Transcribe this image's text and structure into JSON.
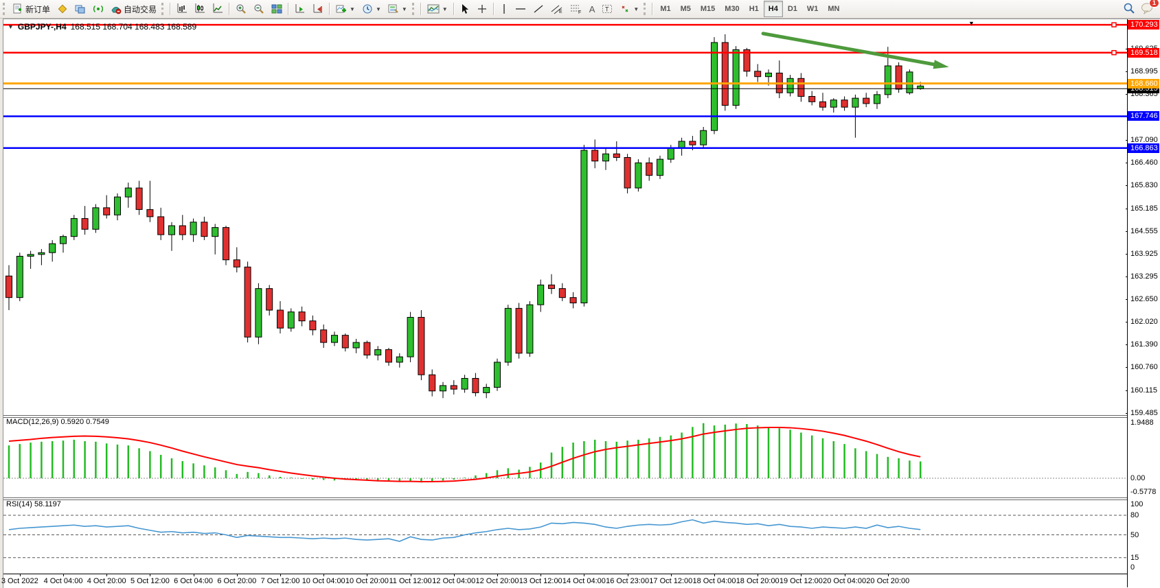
{
  "toolbar": {
    "new_order_label": "新订单",
    "autotrading_label": "自动交易",
    "timeframes": [
      "M1",
      "M5",
      "M15",
      "M30",
      "H1",
      "H4",
      "D1",
      "W1",
      "MN"
    ],
    "active_timeframe": "H4",
    "notification_count": "1"
  },
  "chart": {
    "symbol_title": "GBPJPY-,H4",
    "ohlc_text": "168.515 168.704 168.483 168.589"
  },
  "price_axis": {
    "ticks": [
      "169.625",
      "168.995",
      "168.365",
      "167.090",
      "166.460",
      "165.830",
      "165.185",
      "164.555",
      "163.925",
      "163.295",
      "162.650",
      "162.020",
      "161.390",
      "160.760",
      "160.115",
      "159.485"
    ],
    "tick_values": [
      169.625,
      168.995,
      168.365,
      167.09,
      166.46,
      165.83,
      165.185,
      164.555,
      163.925,
      163.295,
      162.65,
      162.02,
      161.39,
      160.76,
      160.115,
      159.485
    ]
  },
  "hlines": [
    {
      "price": 170.293,
      "label": "170.293",
      "color": "#ff0000",
      "width": 2.5,
      "handles": true
    },
    {
      "price": 169.518,
      "label": "169.518",
      "color": "#ff0000",
      "width": 2.5,
      "handles": true
    },
    {
      "price": 168.66,
      "label": "168.660",
      "color": "#ffa500",
      "width": 3,
      "handles": false
    },
    {
      "price": 168.515,
      "label": "168.515",
      "color": "#000000",
      "width": 1,
      "handles": false
    },
    {
      "price": 167.746,
      "label": "167.746",
      "color": "#0000ff",
      "width": 2.5,
      "handles": false
    },
    {
      "price": 166.863,
      "label": "166.863",
      "color": "#0000ff",
      "width": 2.5,
      "handles": false
    }
  ],
  "macd_panel": {
    "label": "MACD(12,26,9) 0.5920 0.7549",
    "ticks": [
      {
        "text": "1.9488",
        "value": 1.9488
      },
      {
        "text": "0.00",
        "value": 0.0
      },
      {
        "text": "-0.5778",
        "value": -0.5778
      }
    ]
  },
  "rsi_panel": {
    "label": "RSI(14) 58.1197",
    "ticks": [
      {
        "text": "100",
        "value": 100
      },
      {
        "text": "80",
        "value": 80
      },
      {
        "text": "50",
        "value": 50
      },
      {
        "text": "15",
        "value": 15
      },
      {
        "text": "0",
        "value": 0
      }
    ],
    "dashed_levels": [
      80,
      50,
      15
    ]
  },
  "chart_data": {
    "type": "candlestick",
    "title": "GBPJPY- H4",
    "bull_color": "#2fbe2f",
    "bear_color": "#e03030",
    "wick_color": "#000000",
    "candles": [
      [
        163.3,
        163.6,
        162.35,
        162.7
      ],
      [
        162.7,
        163.95,
        162.6,
        163.85
      ],
      [
        163.85,
        164.0,
        163.5,
        163.9
      ],
      [
        163.9,
        164.05,
        163.6,
        163.95
      ],
      [
        163.95,
        164.3,
        163.7,
        164.2
      ],
      [
        164.2,
        164.45,
        163.95,
        164.4
      ],
      [
        164.4,
        165.0,
        164.3,
        164.9
      ],
      [
        164.9,
        165.25,
        164.45,
        164.6
      ],
      [
        164.6,
        165.3,
        164.5,
        165.2
      ],
      [
        165.2,
        165.55,
        164.9,
        165.0
      ],
      [
        165.0,
        165.6,
        164.85,
        165.5
      ],
      [
        165.5,
        165.9,
        165.2,
        165.75
      ],
      [
        165.75,
        165.95,
        165.0,
        165.15
      ],
      [
        165.15,
        165.95,
        164.8,
        164.95
      ],
      [
        164.95,
        165.2,
        164.3,
        164.45
      ],
      [
        164.45,
        164.8,
        164.0,
        164.7
      ],
      [
        164.7,
        165.0,
        164.3,
        164.45
      ],
      [
        164.45,
        164.9,
        164.25,
        164.8
      ],
      [
        164.8,
        164.95,
        164.3,
        164.4
      ],
      [
        164.4,
        164.75,
        163.9,
        164.65
      ],
      [
        164.65,
        164.7,
        163.6,
        163.75
      ],
      [
        163.75,
        164.1,
        163.4,
        163.55
      ],
      [
        163.55,
        163.7,
        161.45,
        161.6
      ],
      [
        161.6,
        163.1,
        161.4,
        162.95
      ],
      [
        162.95,
        163.05,
        162.2,
        162.35
      ],
      [
        162.35,
        162.6,
        161.7,
        161.85
      ],
      [
        161.85,
        162.4,
        161.75,
        162.3
      ],
      [
        162.3,
        162.45,
        161.9,
        162.05
      ],
      [
        162.05,
        162.2,
        161.65,
        161.8
      ],
      [
        161.8,
        161.95,
        161.3,
        161.45
      ],
      [
        161.45,
        161.75,
        161.35,
        161.65
      ],
      [
        161.65,
        161.7,
        161.2,
        161.3
      ],
      [
        161.3,
        161.55,
        161.15,
        161.45
      ],
      [
        161.45,
        161.5,
        161.0,
        161.1
      ],
      [
        161.1,
        161.35,
        160.95,
        161.25
      ],
      [
        161.25,
        161.3,
        160.8,
        160.9
      ],
      [
        160.9,
        161.15,
        160.75,
        161.05
      ],
      [
        161.05,
        162.3,
        160.9,
        162.15
      ],
      [
        162.15,
        162.35,
        160.4,
        160.55
      ],
      [
        160.55,
        160.7,
        159.95,
        160.1
      ],
      [
        160.1,
        160.35,
        159.9,
        160.25
      ],
      [
        160.25,
        160.4,
        160.0,
        160.15
      ],
      [
        160.15,
        160.55,
        160.05,
        160.45
      ],
      [
        160.45,
        160.6,
        159.95,
        160.05
      ],
      [
        160.05,
        160.3,
        159.9,
        160.2
      ],
      [
        160.2,
        161.0,
        160.1,
        160.9
      ],
      [
        160.9,
        162.5,
        160.8,
        162.4
      ],
      [
        162.4,
        162.55,
        161.0,
        161.15
      ],
      [
        161.15,
        162.6,
        161.05,
        162.5
      ],
      [
        162.5,
        163.2,
        162.3,
        163.05
      ],
      [
        163.05,
        163.35,
        162.8,
        162.95
      ],
      [
        162.95,
        163.1,
        162.6,
        162.7
      ],
      [
        162.7,
        162.85,
        162.4,
        162.55
      ],
      [
        162.55,
        166.95,
        162.45,
        166.8
      ],
      [
        166.8,
        167.1,
        166.3,
        166.5
      ],
      [
        166.5,
        166.85,
        166.25,
        166.7
      ],
      [
        166.7,
        167.05,
        166.5,
        166.6
      ],
      [
        166.6,
        166.7,
        165.6,
        165.75
      ],
      [
        165.75,
        166.55,
        165.65,
        166.45
      ],
      [
        166.45,
        166.6,
        165.95,
        166.1
      ],
      [
        166.1,
        166.65,
        166.0,
        166.55
      ],
      [
        166.55,
        166.95,
        166.45,
        166.85
      ],
      [
        166.85,
        167.15,
        166.65,
        167.05
      ],
      [
        167.05,
        167.2,
        166.8,
        166.95
      ],
      [
        166.95,
        167.45,
        166.85,
        167.35
      ],
      [
        167.35,
        169.95,
        167.25,
        169.8
      ],
      [
        169.8,
        170.03,
        167.9,
        168.05
      ],
      [
        168.05,
        169.7,
        167.95,
        169.6
      ],
      [
        169.6,
        169.65,
        168.85,
        169.0
      ],
      [
        169.0,
        169.2,
        168.7,
        168.85
      ],
      [
        168.85,
        169.05,
        168.6,
        168.95
      ],
      [
        168.95,
        169.3,
        168.25,
        168.4
      ],
      [
        168.4,
        168.9,
        168.3,
        168.8
      ],
      [
        168.8,
        168.95,
        168.15,
        168.3
      ],
      [
        168.3,
        168.45,
        168.05,
        168.15
      ],
      [
        168.15,
        168.4,
        167.9,
        168.0
      ],
      [
        168.0,
        168.25,
        167.85,
        168.2
      ],
      [
        168.2,
        168.3,
        167.9,
        168.0
      ],
      [
        168.0,
        168.35,
        167.15,
        168.25
      ],
      [
        168.25,
        168.4,
        168.0,
        168.1
      ],
      [
        168.1,
        168.45,
        167.95,
        168.35
      ],
      [
        168.35,
        169.68,
        168.25,
        169.15
      ],
      [
        169.15,
        169.25,
        168.4,
        168.5
      ],
      [
        168.4,
        169.05,
        168.35,
        168.98
      ],
      [
        168.515,
        168.704,
        168.483,
        168.589
      ]
    ],
    "time_labels": [
      "3 Oct 2022",
      "4 Oct 04:00",
      "4 Oct 20:00",
      "5 Oct 12:00",
      "6 Oct 04:00",
      "6 Oct 20:00",
      "7 Oct 12:00",
      "10 Oct 04:00",
      "10 Oct 20:00",
      "11 Oct 12:00",
      "12 Oct 04:00",
      "12 Oct 20:00",
      "13 Oct 12:00",
      "14 Oct 04:00",
      "16 Oct 23:00",
      "17 Oct 12:00",
      "18 Oct 04:00",
      "18 Oct 20:00",
      "19 Oct 12:00",
      "20 Oct 04:00",
      "20 Oct 20:00"
    ],
    "label_first_index": 1,
    "label_step": 4,
    "macd": {
      "histogram_color": "#22bb22",
      "signal_color": "#ff0000",
      "histogram": [
        1.15,
        1.2,
        1.25,
        1.28,
        1.3,
        1.32,
        1.35,
        1.3,
        1.28,
        1.22,
        1.18,
        1.15,
        1.05,
        0.95,
        0.82,
        0.7,
        0.6,
        0.52,
        0.45,
        0.38,
        0.28,
        0.15,
        0.22,
        0.18,
        0.1,
        0.05,
        0.02,
        -0.02,
        -0.05,
        -0.06,
        -0.08,
        -0.06,
        -0.05,
        -0.08,
        -0.1,
        -0.09,
        -0.12,
        -0.1,
        -0.15,
        -0.12,
        -0.08,
        -0.05,
        0.02,
        0.1,
        0.18,
        0.28,
        0.35,
        0.3,
        0.4,
        0.55,
        0.9,
        1.1,
        1.25,
        1.3,
        1.35,
        1.3,
        1.28,
        1.32,
        1.35,
        1.4,
        1.45,
        1.5,
        1.6,
        1.8,
        1.93,
        1.85,
        1.88,
        1.92,
        1.9,
        1.85,
        1.8,
        1.75,
        1.7,
        1.6,
        1.5,
        1.4,
        1.3,
        1.2,
        1.05,
        0.95,
        0.85,
        0.75,
        0.7,
        0.62,
        0.59
      ],
      "signal": [
        1.3,
        1.33,
        1.36,
        1.4,
        1.43,
        1.45,
        1.47,
        1.48,
        1.47,
        1.45,
        1.42,
        1.38,
        1.32,
        1.25,
        1.16,
        1.06,
        0.95,
        0.85,
        0.75,
        0.66,
        0.57,
        0.48,
        0.42,
        0.37,
        0.3,
        0.24,
        0.18,
        0.13,
        0.08,
        0.04,
        0.0,
        -0.03,
        -0.05,
        -0.07,
        -0.09,
        -0.1,
        -0.11,
        -0.11,
        -0.12,
        -0.12,
        -0.11,
        -0.1,
        -0.07,
        -0.04,
        0.01,
        0.07,
        0.13,
        0.17,
        0.22,
        0.3,
        0.42,
        0.56,
        0.7,
        0.82,
        0.93,
        1.01,
        1.07,
        1.12,
        1.17,
        1.22,
        1.27,
        1.32,
        1.38,
        1.46,
        1.55,
        1.61,
        1.66,
        1.71,
        1.75,
        1.77,
        1.78,
        1.78,
        1.77,
        1.74,
        1.7,
        1.65,
        1.58,
        1.5,
        1.4,
        1.3,
        1.18,
        1.05,
        0.93,
        0.83,
        0.75
      ]
    },
    "rsi": {
      "line_color": "#4596d1",
      "values": [
        58,
        60,
        61,
        62,
        63,
        64,
        65,
        63,
        64,
        62,
        63,
        64,
        60,
        57,
        54,
        55,
        53,
        54,
        52,
        53,
        50,
        46,
        49,
        48,
        47,
        46,
        46,
        45,
        44,
        45,
        44,
        45,
        43,
        42,
        43,
        44,
        40,
        47,
        43,
        42,
        45,
        46,
        50,
        53,
        55,
        58,
        60,
        58,
        59,
        62,
        68,
        67,
        69,
        68,
        66,
        62,
        60,
        63,
        65,
        66,
        65,
        66,
        70,
        73,
        68,
        71,
        69,
        68,
        66,
        67,
        64,
        66,
        63,
        62,
        60,
        62,
        61,
        60,
        62,
        60,
        65,
        61,
        63,
        60,
        58.1
      ]
    },
    "annotations": [
      {
        "type": "arrow",
        "color": "#4e9a3c",
        "stroke_width": 5,
        "from": {
          "index": 69.5,
          "price": 170.05
        },
        "to": {
          "index": 86,
          "price": 169.15
        }
      }
    ]
  }
}
